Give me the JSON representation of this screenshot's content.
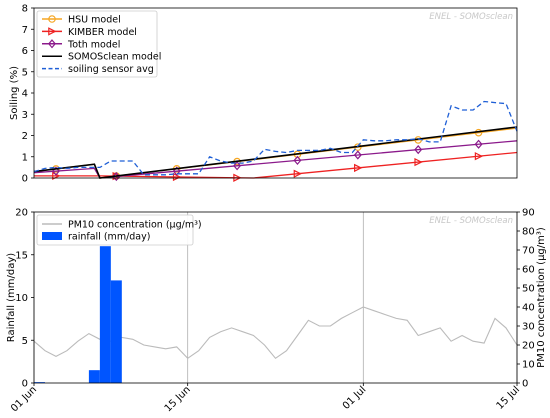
{
  "chart_data": [
    {
      "type": "line",
      "watermark": "ENEL - SOMOsclean",
      "ylabel": "Soiling (%)",
      "ylim": [
        0,
        8
      ],
      "yticks": [
        "0",
        "1",
        "2",
        "3",
        "4",
        "5",
        "6",
        "7",
        "8"
      ],
      "x_range_days": [
        0,
        44
      ],
      "grid": false,
      "legend_position": "top-left",
      "series": [
        {
          "name": "HSU model",
          "color": "#f5a623",
          "marker": "circle",
          "x": [
            0,
            5.5,
            6,
            44
          ],
          "y": [
            0.3,
            0.65,
            0.0,
            2.35
          ]
        },
        {
          "name": "KIMBER model",
          "color": "#ee2222",
          "marker": "triangle-right",
          "x": [
            0,
            6,
            20,
            44
          ],
          "y": [
            0.1,
            0.1,
            0.0,
            1.2
          ]
        },
        {
          "name": "Toth model",
          "color": "#8b1a8b",
          "marker": "diamond",
          "x": [
            0,
            5.5,
            6,
            44
          ],
          "y": [
            0.25,
            0.45,
            0.0,
            1.75
          ]
        },
        {
          "name": "SOMOSclean model",
          "color": "#000000",
          "marker": "none",
          "x": [
            0,
            5.5,
            6,
            44
          ],
          "y": [
            0.3,
            0.65,
            0.0,
            2.4
          ]
        },
        {
          "name": "soiling sensor avg",
          "color": "#1f5fd6",
          "marker": "none",
          "dash": true,
          "x": [
            0,
            1,
            2,
            3,
            4,
            5,
            6,
            7,
            8,
            9,
            10,
            11,
            12,
            13,
            14,
            15,
            16,
            17,
            18,
            19,
            20,
            21,
            22,
            23,
            24,
            25,
            26,
            27,
            28,
            29,
            30,
            31,
            32,
            33,
            34,
            35,
            36,
            37,
            38,
            39,
            40,
            41,
            42,
            43,
            44
          ],
          "y": [
            0.3,
            0.45,
            0.5,
            0.45,
            0.5,
            0.5,
            0.5,
            0.8,
            0.8,
            0.8,
            0.15,
            0.15,
            0.15,
            0.2,
            0.2,
            0.2,
            1.0,
            0.8,
            0.7,
            0.7,
            0.8,
            1.35,
            1.25,
            1.2,
            1.3,
            1.3,
            1.3,
            1.4,
            1.2,
            1.2,
            1.8,
            1.75,
            1.75,
            1.8,
            1.8,
            1.85,
            1.7,
            1.7,
            3.4,
            3.2,
            3.2,
            3.6,
            3.55,
            3.5,
            2.2
          ]
        }
      ]
    },
    {
      "type": "bar",
      "watermark": "ENEL - SOMOsclean",
      "ylabel": "Rainfall (mm/day)",
      "ylabel2": "PM10 concentration (μg/m³)",
      "ylim": [
        0,
        20
      ],
      "ylim2": [
        0,
        90
      ],
      "yticks": [
        "0",
        "5",
        "10",
        "15",
        "20"
      ],
      "yticks2": [
        "0",
        "10",
        "20",
        "30",
        "40",
        "50",
        "60",
        "70",
        "80",
        "90"
      ],
      "xticklabels": [
        "01 Jun",
        "15 Jun",
        "01 Jul",
        "15 Jul"
      ],
      "xtick_days": [
        0,
        14,
        30,
        44
      ],
      "x_range_days": [
        0,
        44
      ],
      "grid": true,
      "legend_position": "top-left",
      "series": [
        {
          "name": "PM10 concentration (μg/m³)",
          "type": "line",
          "color": "#bbbbbb",
          "axis": "right",
          "x": [
            0,
            1,
            2,
            3,
            4,
            5,
            6,
            7,
            8,
            9,
            10,
            11,
            12,
            13,
            14,
            15,
            16,
            17,
            18,
            19,
            20,
            21,
            22,
            23,
            24,
            25,
            26,
            27,
            28,
            29,
            30,
            31,
            32,
            33,
            34,
            35,
            36,
            37,
            38,
            39,
            40,
            41,
            42,
            43,
            44
          ],
          "y": [
            22,
            17,
            14,
            17,
            22,
            26,
            23,
            22,
            24,
            23,
            20,
            19,
            18,
            19,
            13,
            17,
            24,
            27,
            29,
            27,
            25,
            20,
            13,
            17,
            25,
            33,
            30,
            30,
            34,
            37,
            40,
            38,
            36,
            34,
            33,
            25,
            27,
            29,
            22,
            25,
            22,
            21,
            34,
            29,
            20
          ]
        },
        {
          "name": "rainfall (mm/day)",
          "type": "bar",
          "color": "#0055ff",
          "axis": "left",
          "x": [
            0.5,
            5.5,
            6.5,
            7.5
          ],
          "y": [
            0.1,
            1.5,
            16.0,
            12.0
          ]
        }
      ]
    }
  ]
}
